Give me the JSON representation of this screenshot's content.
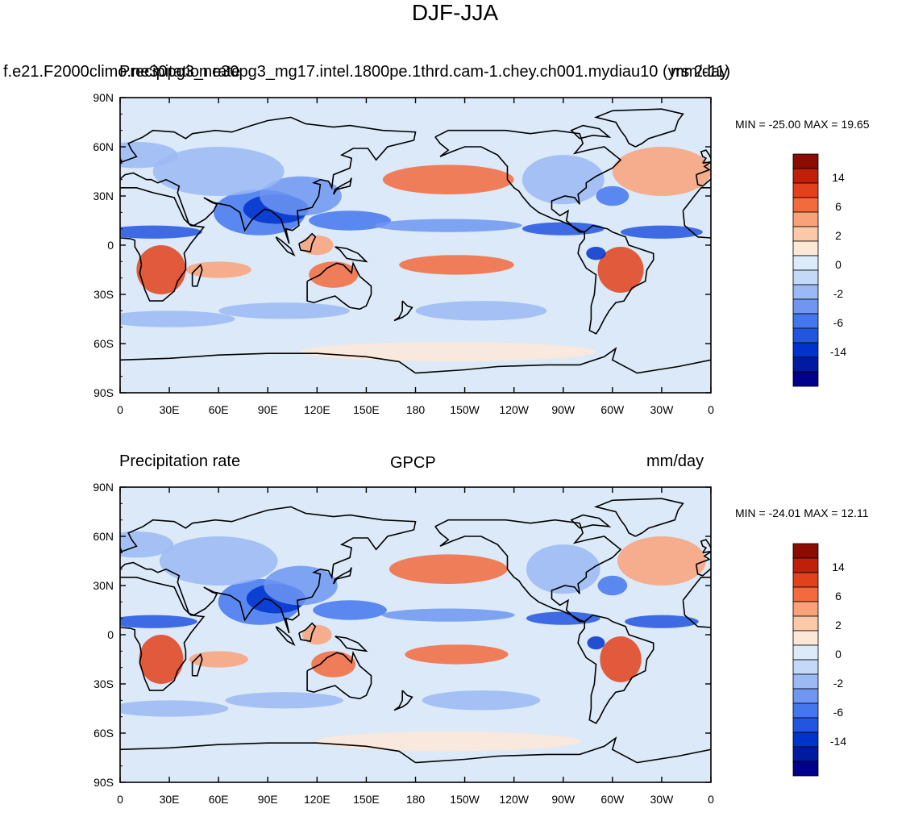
{
  "title": "DJF-JJA",
  "colors": {
    "ocean": "#dbe9f8",
    "coast": "#000000",
    "scale": [
      "#00008c",
      "#001aa0",
      "#0033cc",
      "#2255e0",
      "#4477ee",
      "#6f97f2",
      "#9bb9f5",
      "#c4d8f7",
      "#dcebfa",
      "#fde8d8",
      "#fbc9a8",
      "#f9a27a",
      "#f36a3d",
      "#e2411b",
      "#c01f0a",
      "#8d0c00"
    ]
  },
  "colorbar_labels": [
    "14",
    "6",
    "2",
    "0",
    "-2",
    "-6",
    "-14"
  ],
  "chart_data": [
    {
      "type": "heatmap",
      "map_projection": "cylindrical-equidistant",
      "panel_left_text": "f.e21.F2000climo.ne30pg3_ne30pg3_mg17.intel.1800pe.1thrd.cam-1.chey.ch001.mydiau10 (yrs 2-11)",
      "panel_center_text": "Precipitation rate",
      "panel_right_text": "mm/day",
      "stats_text": "MIN = -25.00 MAX =  19.65",
      "variable": "Precipitation rate",
      "units": "mm/day",
      "min": -25.0,
      "max": 19.65,
      "contour_levels": [
        -20,
        -14,
        -10,
        -6,
        -4,
        -2,
        -1,
        -0.5,
        0,
        0.5,
        1,
        2,
        4,
        6,
        10,
        14,
        20
      ],
      "lat_ticks": [
        "90N",
        "60N",
        "30N",
        "0",
        "30S",
        "60S",
        "90S"
      ],
      "lon_ticks": [
        "0",
        "30E",
        "60E",
        "90E",
        "120E",
        "150E",
        "180",
        "150W",
        "120W",
        "90W",
        "60W",
        "30W",
        "0"
      ],
      "ylim": [
        -90,
        90
      ],
      "xlim": [
        0,
        360
      ]
    },
    {
      "type": "heatmap",
      "map_projection": "cylindrical-equidistant",
      "panel_left_text": "Precipitation rate",
      "panel_center_text": "GPCP",
      "panel_right_text": "mm/day",
      "stats_text": "MIN = -24.01 MAX =  12.11",
      "variable": "Precipitation rate",
      "units": "mm/day",
      "min": -24.01,
      "max": 12.11,
      "contour_levels": [
        -20,
        -14,
        -10,
        -6,
        -4,
        -2,
        -1,
        -0.5,
        0,
        0.5,
        1,
        2,
        4,
        6,
        10,
        14,
        20
      ],
      "lat_ticks": [
        "90N",
        "60N",
        "30N",
        "0",
        "30S",
        "60S",
        "90S"
      ],
      "lon_ticks": [
        "0",
        "30E",
        "60E",
        "90E",
        "120E",
        "150E",
        "180",
        "150W",
        "120W",
        "90W",
        "60W",
        "30W",
        "0"
      ],
      "ylim": [
        -90,
        90
      ],
      "xlim": [
        0,
        360
      ]
    }
  ]
}
